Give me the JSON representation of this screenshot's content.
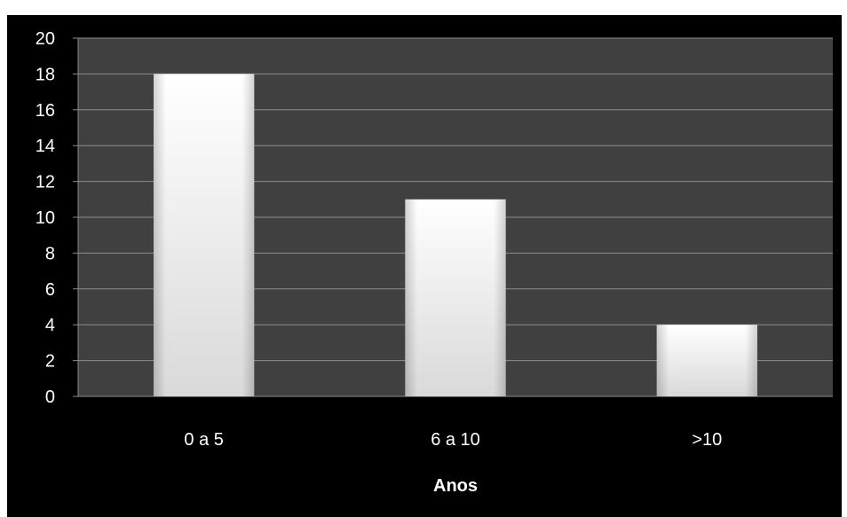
{
  "chart_data": {
    "type": "bar",
    "categories": [
      "0 a 5",
      "6 a 10",
      ">10"
    ],
    "values": [
      18,
      11,
      4
    ],
    "title": "",
    "xlabel": "Anos",
    "ylabel": "",
    "ylim": [
      0,
      20
    ],
    "yticks": [
      0,
      2,
      4,
      6,
      8,
      10,
      12,
      14,
      16,
      18,
      20
    ],
    "grid": true,
    "legend": "none",
    "colors": {
      "background": "#000000",
      "plot_area": "#404040",
      "gridline": "#8c8c8c",
      "bar_top": "#ffffff",
      "bar_bottom": "#d9d9d9",
      "text": "#ffffff"
    }
  }
}
